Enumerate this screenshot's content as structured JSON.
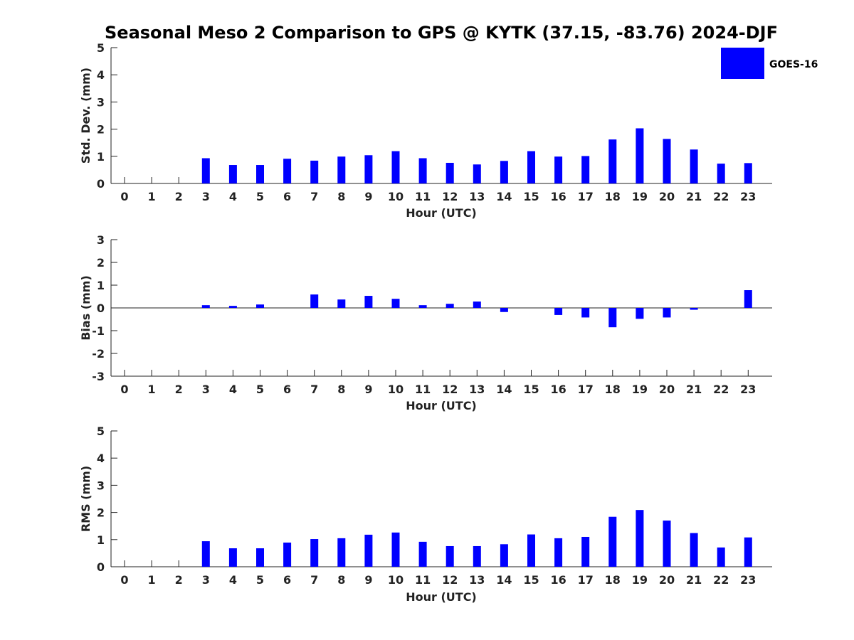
{
  "title": "Seasonal Meso 2 Comparison to GPS @ KYTK (37.15, -83.76) 2024-DJF",
  "legend": {
    "label": "GOES-16",
    "color": "#0000ff"
  },
  "chart_data": [
    {
      "type": "bar",
      "xlabel": "Hour (UTC)",
      "ylabel": "Std. Dev. (mm)",
      "ylim": [
        0,
        5
      ],
      "yticks": [
        0,
        1,
        2,
        3,
        4,
        5
      ],
      "categories": [
        "0",
        "1",
        "2",
        "3",
        "4",
        "5",
        "6",
        "7",
        "8",
        "9",
        "10",
        "11",
        "12",
        "13",
        "14",
        "15",
        "16",
        "17",
        "18",
        "19",
        "20",
        "21",
        "22",
        "23"
      ],
      "series": [
        {
          "name": "GOES-16",
          "values": [
            null,
            null,
            null,
            0.93,
            0.68,
            0.68,
            0.91,
            0.84,
            0.99,
            1.04,
            1.19,
            0.93,
            0.76,
            0.7,
            0.83,
            1.19,
            0.99,
            1.01,
            1.62,
            2.03,
            1.64,
            1.25,
            0.73,
            0.75
          ]
        }
      ],
      "grid": false,
      "legend": "top-right"
    },
    {
      "type": "bar",
      "xlabel": "Hour (UTC)",
      "ylabel": "Bias (mm)",
      "ylim": [
        -3,
        3
      ],
      "yticks": [
        -3,
        -2,
        -1,
        0,
        1,
        2,
        3
      ],
      "categories": [
        "0",
        "1",
        "2",
        "3",
        "4",
        "5",
        "6",
        "7",
        "8",
        "9",
        "10",
        "11",
        "12",
        "13",
        "14",
        "15",
        "16",
        "17",
        "18",
        "19",
        "20",
        "21",
        "22",
        "23"
      ],
      "series": [
        {
          "name": "GOES-16",
          "values": [
            null,
            null,
            null,
            0.12,
            0.09,
            0.15,
            0.0,
            0.59,
            0.37,
            0.53,
            0.4,
            0.12,
            0.18,
            0.28,
            -0.18,
            0.0,
            -0.31,
            -0.42,
            -0.85,
            -0.48,
            -0.42,
            -0.08,
            0.0,
            0.78
          ]
        }
      ],
      "grid": false
    },
    {
      "type": "bar",
      "xlabel": "Hour (UTC)",
      "ylabel": "RMS (mm)",
      "ylim": [
        0,
        5
      ],
      "yticks": [
        0,
        1,
        2,
        3,
        4,
        5
      ],
      "categories": [
        "0",
        "1",
        "2",
        "3",
        "4",
        "5",
        "6",
        "7",
        "8",
        "9",
        "10",
        "11",
        "12",
        "13",
        "14",
        "15",
        "16",
        "17",
        "18",
        "19",
        "20",
        "21",
        "22",
        "23"
      ],
      "series": [
        {
          "name": "GOES-16",
          "values": [
            null,
            null,
            null,
            0.94,
            0.68,
            0.68,
            0.89,
            1.02,
            1.05,
            1.18,
            1.26,
            0.92,
            0.76,
            0.76,
            0.83,
            1.19,
            1.05,
            1.1,
            1.84,
            2.09,
            1.7,
            1.24,
            0.71,
            1.08
          ]
        }
      ],
      "grid": false
    }
  ]
}
